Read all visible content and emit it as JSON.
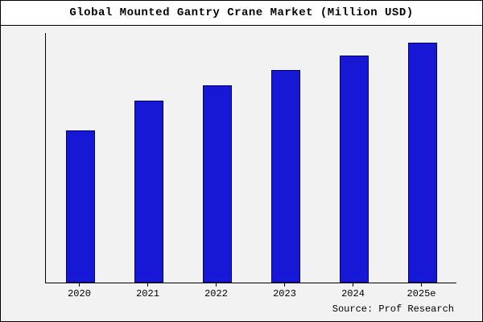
{
  "title": "Global Mounted Gantry Crane Market (Million USD)",
  "source": "Source: Prof Research",
  "colors": {
    "bar_fill": "#1717d6",
    "bar_edge": "#000066",
    "title_band_bg": "#ffffff",
    "chart_bg": "#f2f2f2",
    "axis": "#000000"
  },
  "chart_data": {
    "type": "bar",
    "title": "Global Mounted Gantry Crane Market (Million USD)",
    "categories": [
      "2020",
      "2021",
      "2022",
      "2023",
      "2024",
      "2025e"
    ],
    "values": [
      61,
      73,
      79,
      85,
      91,
      96
    ],
    "xlabel": "",
    "ylabel": "",
    "ylim": [
      0,
      100
    ],
    "grid": false,
    "legend": false,
    "y_axis_labels_shown": false,
    "source": "Source: Prof Research"
  }
}
